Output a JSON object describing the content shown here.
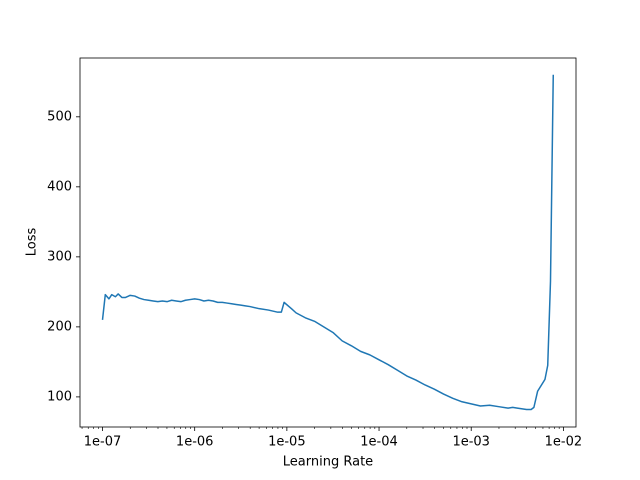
{
  "chart_data": {
    "type": "line",
    "xlabel": "Learning Rate",
    "ylabel": "Loss",
    "xscale": "log",
    "color": "#1f77b4",
    "x": [
      1e-07,
      1.072e-07,
      1.175e-07,
      1.259e-07,
      1.38e-07,
      1.479e-07,
      1.622e-07,
      1.778e-07,
      1.995e-07,
      2.239e-07,
      2.512e-07,
      2.818e-07,
      3.162e-07,
      3.548e-07,
      3.981e-07,
      4.467e-07,
      5.012e-07,
      5.623e-07,
      6.31e-07,
      7.079e-07,
      7.943e-07,
      8.913e-07,
      1e-06,
      1.122e-06,
      1.259e-06,
      1.413e-06,
      1.585e-06,
      1.778e-06,
      1.995e-06,
      2.239e-06,
      2.512e-06,
      2.818e-06,
      3.162e-06,
      3.548e-06,
      3.981e-06,
      5.012e-06,
      6.31e-06,
      7.943e-06,
      8.71e-06,
      9.333e-06,
      1.122e-05,
      1.259e-05,
      1.585e-05,
      1.995e-05,
      2.512e-05,
      3.162e-05,
      3.981e-05,
      5.012e-05,
      6.31e-05,
      7.943e-05,
      0.0001,
      0.0001259,
      0.0001585,
      0.0001995,
      0.0002512,
      0.0003162,
      0.0003981,
      0.0005012,
      0.000631,
      0.0007943,
      0.001,
      0.001259,
      0.001585,
      0.001995,
      0.002512,
      0.002818,
      0.003162,
      0.003981,
      0.004467,
      0.004786,
      0.005248,
      0.00631,
      0.006761,
      0.007244,
      0.007762
    ],
    "values": [
      210,
      246,
      240,
      246,
      243,
      247,
      242,
      242,
      245,
      244,
      241,
      239,
      238,
      237,
      236,
      237,
      236,
      238,
      237,
      236,
      238,
      239,
      240,
      239,
      237,
      238,
      237,
      235,
      235,
      234,
      233,
      232,
      231,
      230,
      229,
      226,
      224,
      221,
      221,
      235,
      226,
      220,
      213,
      208,
      200,
      192,
      180,
      173,
      165,
      160,
      153,
      146,
      138,
      130,
      124,
      117,
      111,
      104,
      98,
      93,
      90,
      87,
      88,
      86,
      84,
      85,
      84,
      82,
      82,
      85,
      108,
      125,
      145,
      265,
      560
    ],
    "xlim": [
      5.7e-08,
      0.0137
    ],
    "ylim": [
      57,
      584
    ],
    "xticks": [
      {
        "value": 1e-07,
        "label": "1e-07"
      },
      {
        "value": 1e-06,
        "label": "1e-06"
      },
      {
        "value": 1e-05,
        "label": "1e-05"
      },
      {
        "value": 0.0001,
        "label": "1e-04"
      },
      {
        "value": 0.001,
        "label": "1e-03"
      },
      {
        "value": 0.01,
        "label": "1e-02"
      }
    ],
    "xminorticks": [
      6e-08,
      7e-08,
      8e-08,
      9e-08,
      2e-07,
      3e-07,
      4e-07,
      5e-07,
      6e-07,
      7e-07,
      8e-07,
      9e-07,
      2e-06,
      3e-06,
      4e-06,
      5e-06,
      6e-06,
      7e-06,
      8e-06,
      9e-06,
      2e-05,
      3e-05,
      4e-05,
      5e-05,
      6e-05,
      7e-05,
      8e-05,
      9e-05,
      0.0002,
      0.0003,
      0.0004,
      0.0005,
      0.0006,
      0.0007,
      0.0008,
      0.0009,
      0.002,
      0.003,
      0.004,
      0.005,
      0.006,
      0.007,
      0.008,
      0.009
    ],
    "yticks": [
      100,
      200,
      300,
      400,
      500
    ]
  }
}
